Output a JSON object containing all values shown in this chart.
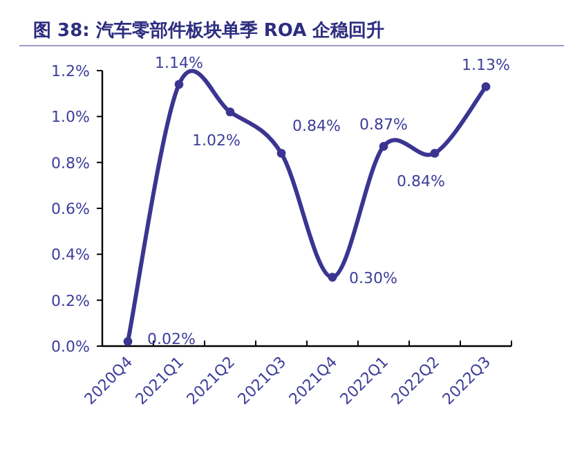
{
  "chart_data": {
    "type": "line",
    "title": "图 38: 汽车零部件板块单季 ROA 企稳回升",
    "categories": [
      "2020Q4",
      "2021Q1",
      "2021Q2",
      "2021Q3",
      "2021Q4",
      "2022Q1",
      "2022Q2",
      "2022Q3"
    ],
    "series": [
      {
        "color": "#3b3591",
        "values": [
          0.02,
          1.14,
          1.02,
          0.84,
          0.3,
          0.87,
          0.84,
          1.13
        ],
        "value_labels": [
          "0.02%",
          "1.14%",
          "1.02%",
          "0.84%",
          "0.30%",
          "0.87%",
          "0.84%",
          "1.13%"
        ]
      }
    ],
    "ylim": [
      0,
      1.2
    ],
    "yticks": [
      {
        "value": 0,
        "label": "0.0%"
      },
      {
        "value": 0.2,
        "label": "0.2%"
      },
      {
        "value": 0.4,
        "label": "0.4%"
      },
      {
        "value": 0.6,
        "label": "0.6%"
      },
      {
        "value": 0.8,
        "label": "0.8%"
      },
      {
        "value": 1.0,
        "label": "1.0%"
      },
      {
        "value": 1.2,
        "label": "1.2%"
      }
    ],
    "marker": "circle",
    "line_style": "solid",
    "grid": false
  }
}
